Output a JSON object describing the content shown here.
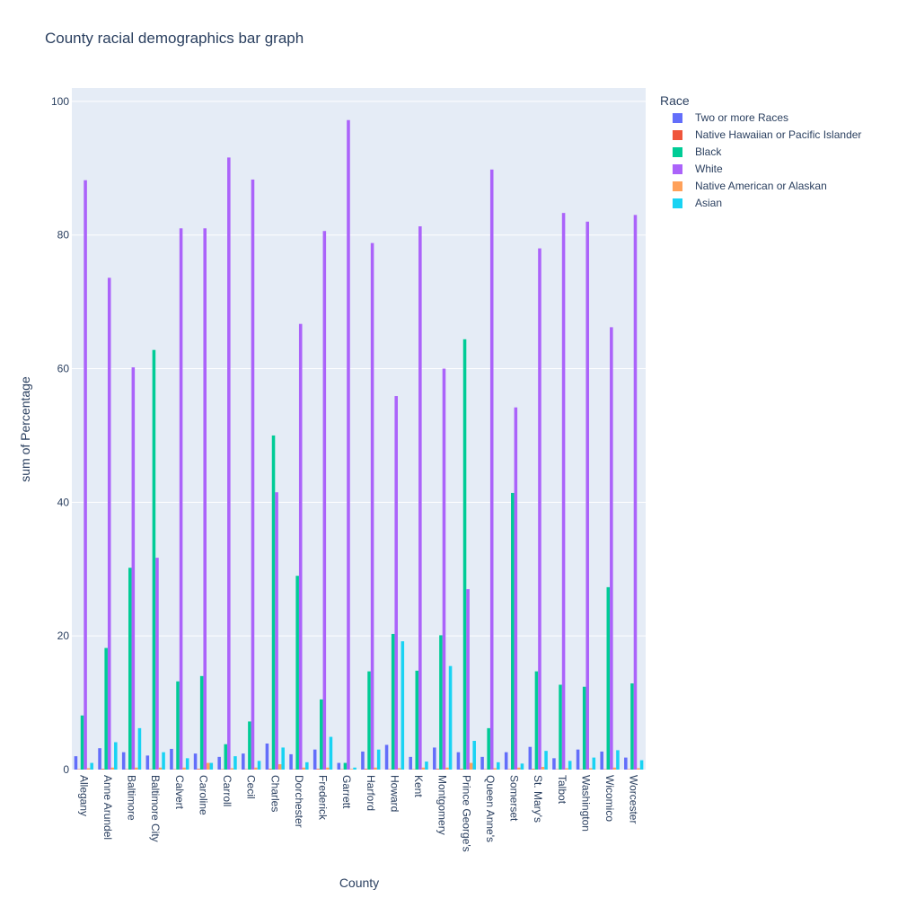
{
  "chart_data": {
    "type": "bar",
    "title": "County racial demographics bar graph",
    "xlabel": "County",
    "ylabel": "sum of Percentage",
    "ylim": [
      0,
      102
    ],
    "yticks": [
      0,
      20,
      40,
      60,
      80,
      100
    ],
    "grid": true,
    "barmode": "group",
    "legend": {
      "title": "Race",
      "placement": "right"
    },
    "categories": [
      "Allegany",
      "Anne Arundel",
      "Baltimore",
      "Baltimore City",
      "Calvert",
      "Caroline",
      "Carroll",
      "Cecil",
      "Charles",
      "Dorchester",
      "Frederick",
      "Garrett",
      "Harford",
      "Howard",
      "Kent",
      "Montgomery",
      "Prince George's",
      "Queen Anne's",
      "Somerset",
      "St. Mary's",
      "Talbot",
      "Washington",
      "Wicomico",
      "Worcester"
    ],
    "series": [
      {
        "name": "Two or more Races",
        "color": "#636efa",
        "values": [
          2.0,
          3.2,
          2.6,
          2.1,
          3.1,
          2.4,
          1.9,
          2.4,
          3.9,
          2.3,
          3.0,
          1.0,
          2.7,
          3.7,
          1.9,
          3.3,
          2.6,
          1.9,
          2.6,
          3.4,
          1.7,
          3.0,
          2.7,
          1.8
        ]
      },
      {
        "name": "Native Hawaiian or Pacific Islander",
        "color": "#ef553b",
        "values": [
          0.05,
          0.1,
          0.05,
          0.05,
          0.05,
          0.1,
          0.05,
          0.05,
          0.1,
          0.05,
          0.1,
          0.05,
          0.1,
          0.05,
          0.05,
          0.1,
          0.1,
          0.05,
          0.05,
          0.1,
          0.05,
          0.05,
          0.05,
          0.05
        ]
      },
      {
        "name": "Black",
        "color": "#00cc96",
        "values": [
          8.1,
          18.2,
          30.2,
          62.8,
          13.2,
          14.0,
          3.8,
          7.2,
          50.0,
          29.0,
          10.5,
          1.0,
          14.7,
          20.3,
          14.8,
          20.1,
          64.4,
          6.2,
          41.4,
          14.7,
          12.7,
          12.4,
          27.3,
          12.9
        ]
      },
      {
        "name": "White",
        "color": "#ab63fa",
        "values": [
          88.2,
          73.6,
          60.2,
          31.7,
          81.0,
          81.0,
          91.6,
          88.3,
          41.5,
          66.7,
          80.6,
          97.2,
          78.8,
          55.9,
          81.3,
          60.0,
          27.0,
          89.8,
          54.2,
          78.0,
          83.3,
          82.0,
          66.2,
          83.0
        ]
      },
      {
        "name": "Native American or Alaskan",
        "color": "#ffa15a",
        "values": [
          0.2,
          0.3,
          0.3,
          0.3,
          0.3,
          1.0,
          0.2,
          0.3,
          0.8,
          0.3,
          0.3,
          0.1,
          0.3,
          0.2,
          0.3,
          0.3,
          1.0,
          0.2,
          0.3,
          0.4,
          0.2,
          0.2,
          0.3,
          0.2
        ]
      },
      {
        "name": "Asian",
        "color": "#19d3f3",
        "values": [
          1.0,
          4.1,
          6.2,
          2.6,
          1.7,
          1.0,
          2.0,
          1.3,
          3.3,
          1.1,
          4.9,
          0.3,
          3.0,
          19.2,
          1.2,
          15.5,
          4.3,
          1.1,
          0.9,
          2.8,
          1.3,
          1.8,
          2.9,
          1.4
        ]
      }
    ]
  }
}
